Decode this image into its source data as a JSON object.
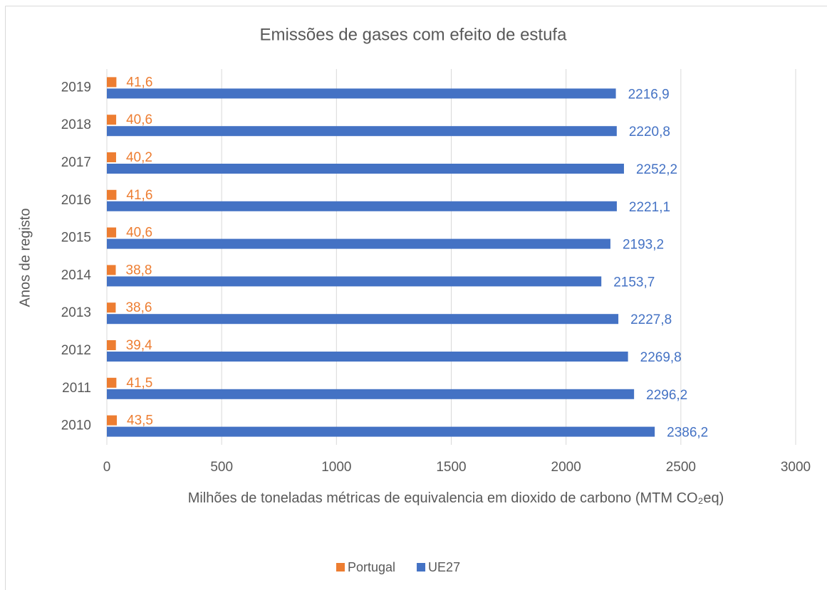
{
  "chart_data": {
    "type": "hbar",
    "title": "Emissões de gases com efeito de estufa",
    "x_label": "Milhões de toneladas métricas de equivalencia em dioxido de carbono (MTM CO₂eq)",
    "y_label": "Anos de registo",
    "categories": [
      "2010",
      "2011",
      "2012",
      "2013",
      "2014",
      "2015",
      "2016",
      "2017",
      "2018",
      "2019"
    ],
    "series": [
      {
        "name": "Portugal",
        "color": "#ed7d31",
        "values": [
          43.5,
          41.5,
          39.4,
          38.6,
          38.8,
          40.6,
          41.6,
          40.2,
          40.6,
          41.6
        ],
        "value_labels": [
          "43,5",
          "41,5",
          "39,4",
          "38,6",
          "38,8",
          "40,6",
          "41,6",
          "40,2",
          "40,6",
          "41,6"
        ]
      },
      {
        "name": "UE27",
        "color": "#4472c4",
        "values": [
          2386.2,
          2296.2,
          2269.8,
          2227.8,
          2153.7,
          2193.2,
          2221.1,
          2252.2,
          2220.8,
          2216.9
        ],
        "value_labels": [
          "2386,2",
          "2296,2",
          "2269,8",
          "2227,8",
          "2153,7",
          "2193,2",
          "2221,1",
          "2252,2",
          "2220,8",
          "2216,9"
        ]
      }
    ],
    "xlim": [
      0,
      3000
    ],
    "xticks": [
      0,
      500,
      1000,
      1500,
      2000,
      2500,
      3000
    ],
    "grid": true,
    "legend": "bottom"
  }
}
